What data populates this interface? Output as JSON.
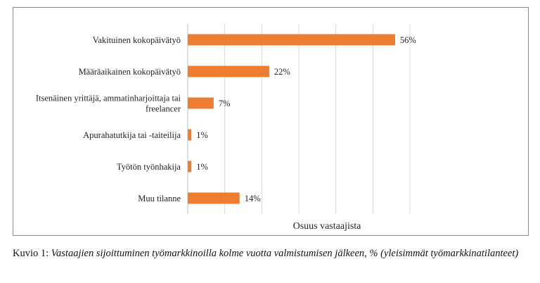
{
  "chart_data": {
    "type": "bar",
    "orientation": "horizontal",
    "categories": [
      [
        "Vakituinen kokopäivätyö"
      ],
      [
        "Määräaikainen kokopäivätyö"
      ],
      [
        "Itsenäinen yrittäjä, ammatinharjoittaja tai",
        "freelancer"
      ],
      [
        "Apurahatutkija tai -taiteilija"
      ],
      [
        "Työtön työnhakija"
      ],
      [
        "Muu tilanne"
      ]
    ],
    "values": [
      56,
      22,
      7,
      1,
      1,
      14
    ],
    "value_labels": [
      "56%",
      "22%",
      "7%",
      "1%",
      "1%",
      "14%"
    ],
    "xlabel": "Osuus vastaajista",
    "xlim": [
      0,
      60
    ],
    "grid": "vertical",
    "bar_color": "#ED7D31",
    "grid_color": "#D9D9D9",
    "axis_color": "#BFBFBF"
  },
  "caption": {
    "prefix": "Kuvio 1: ",
    "text": "Vastaajien sijoittuminen työmarkkinoilla kolme vuotta valmistumisen jälkeen, % (yleisimmät työmarkkinatilanteet)"
  }
}
